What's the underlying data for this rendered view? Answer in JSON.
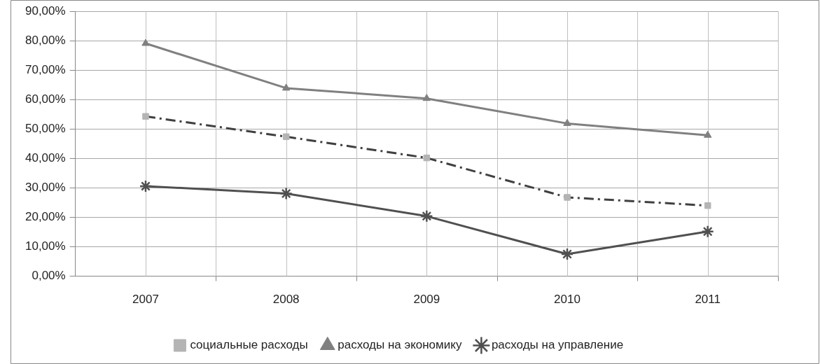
{
  "chart_data": {
    "type": "line",
    "categories": [
      "2007",
      "2008",
      "2009",
      "2010",
      "2011"
    ],
    "series": [
      {
        "name": "социальные расходы",
        "color": "#404040",
        "marker": "square",
        "line_style": "dashed",
        "values": [
          54.3,
          47.4,
          40.2,
          26.8,
          24.0
        ]
      },
      {
        "name": "расходы на экономику",
        "color": "#808080",
        "marker": "triangle",
        "line_style": "solid",
        "values": [
          79.1,
          63.9,
          60.4,
          51.9,
          47.9
        ]
      },
      {
        "name": "расходы на управление",
        "color": "#505050",
        "marker": "cross",
        "line_style": "solid",
        "values": [
          30.6,
          28.1,
          20.4,
          7.5,
          15.2
        ]
      }
    ],
    "ylim": [
      0,
      90
    ],
    "yticks": [
      {
        "value": 0,
        "label": "0,00%"
      },
      {
        "value": 10,
        "label": "10,00%"
      },
      {
        "value": 20,
        "label": "20,00%"
      },
      {
        "value": 30,
        "label": "30,00%"
      },
      {
        "value": 40,
        "label": "40,00%"
      },
      {
        "value": 50,
        "label": "50,00%"
      },
      {
        "value": 60,
        "label": "60,00%"
      },
      {
        "value": 70,
        "label": "70,00%"
      },
      {
        "value": 80,
        "label": "80,00%"
      },
      {
        "value": 90,
        "label": "90,00%"
      }
    ],
    "grid": true,
    "legend": "bottom"
  }
}
